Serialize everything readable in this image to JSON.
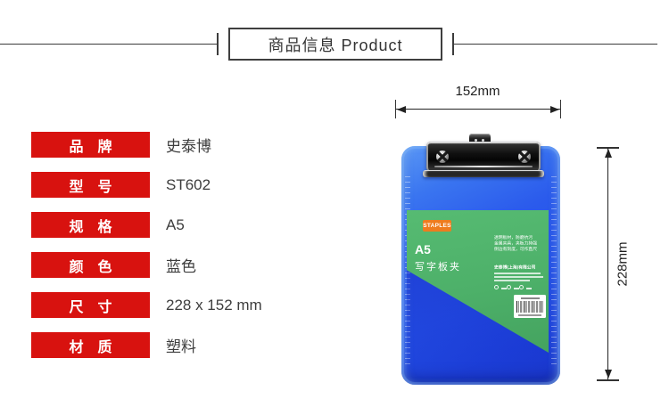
{
  "header": {
    "title": "商品信息 Product"
  },
  "specs": {
    "rows": [
      {
        "label": "品　牌",
        "value": "史泰博"
      },
      {
        "label": "型　号",
        "value": "ST602"
      },
      {
        "label": "规　格",
        "value": "A5"
      },
      {
        "label": "颜　色",
        "value": "蓝色"
      },
      {
        "label": "尺　寸",
        "value": "228 x 152 mm"
      },
      {
        "label": "材　质",
        "value": "塑料"
      }
    ]
  },
  "figure": {
    "top_dimension": "152mm",
    "side_dimension": "228mm",
    "clipboard": {
      "brand": "STAPLES",
      "size": "A5",
      "product_name": "写字板夹",
      "features": [
        "透明板材，防磨抗污",
        "金属夹具，夹板力持强",
        "侧边有刻度，可作直尺"
      ],
      "company": "史泰博(上海)有限公司"
    }
  },
  "colors": {
    "accent_red": "#d8120f",
    "board_blue": "#2456ea",
    "label_green": "#4db069",
    "logo_orange": "#ee7c1f"
  }
}
